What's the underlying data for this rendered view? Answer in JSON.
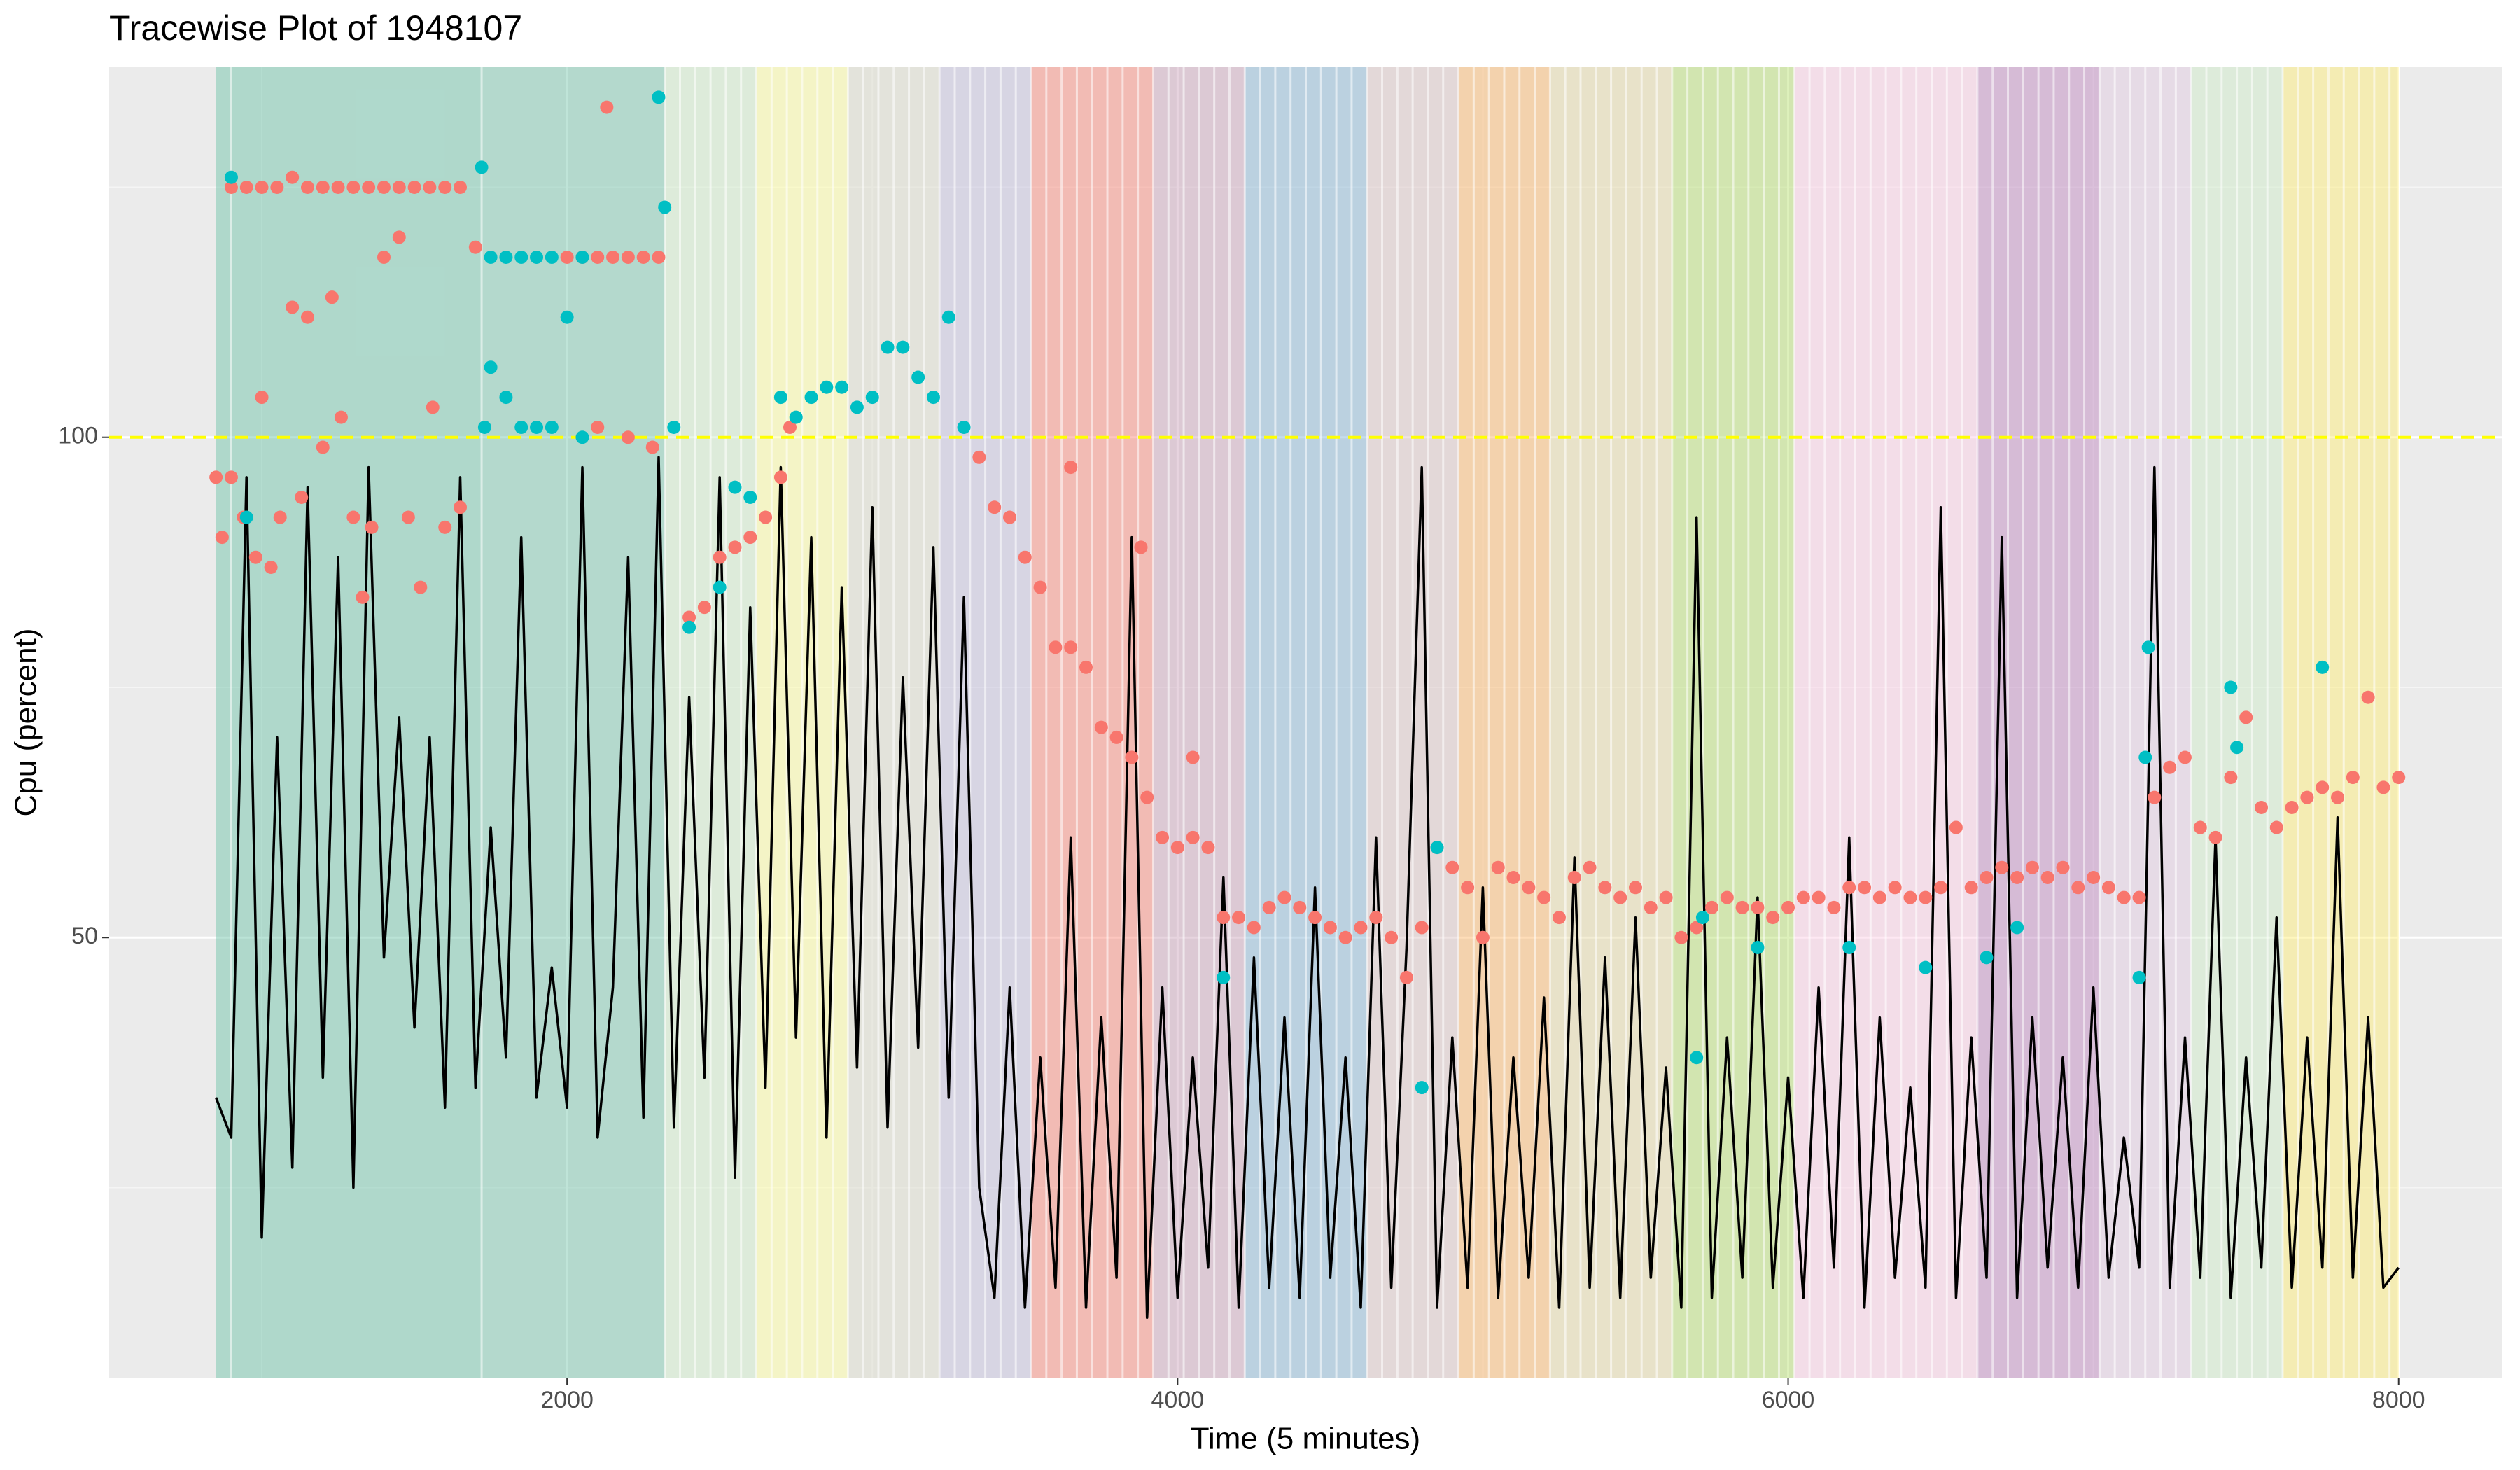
{
  "chart_data": {
    "type": "line",
    "title": "Tracewise Plot of 1948107",
    "x_label": "Time (5 minutes)",
    "y_label": "Cpu (percent)",
    "xlim": [
      500,
      8340
    ],
    "ylim": [
      6,
      137
    ],
    "xticks": [
      2000,
      4000,
      6000,
      8000
    ],
    "yticks": [
      50,
      100
    ],
    "xminor": [
      1000,
      3000,
      5000,
      7000
    ],
    "yminor": [
      25,
      75,
      125
    ],
    "grid": true,
    "reference_line": {
      "value": 100,
      "color": "#ffff00"
    },
    "bands": [
      {
        "x0": 850,
        "x1": 1720,
        "color": "#66c2a5"
      },
      {
        "x0": 1720,
        "x1": 2320,
        "color": "#70c4a8"
      },
      {
        "x0": 2320,
        "x1": 2620,
        "color": "#ccebc5"
      },
      {
        "x0": 2620,
        "x1": 2920,
        "color": "#ffff99"
      },
      {
        "x0": 2920,
        "x1": 3220,
        "color": "#d9d9c8"
      },
      {
        "x0": 3220,
        "x1": 3520,
        "color": "#bebada"
      },
      {
        "x0": 3520,
        "x1": 3920,
        "color": "#fb8072"
      },
      {
        "x0": 3920,
        "x1": 4220,
        "color": "#c9a0b8"
      },
      {
        "x0": 4220,
        "x1": 4620,
        "color": "#80b1d3"
      },
      {
        "x0": 4620,
        "x1": 4920,
        "color": "#d9c0c0"
      },
      {
        "x0": 4920,
        "x1": 5220,
        "color": "#fdb462"
      },
      {
        "x0": 5220,
        "x1": 5620,
        "color": "#e5d8a0"
      },
      {
        "x0": 5620,
        "x1": 6020,
        "color": "#b3de69"
      },
      {
        "x0": 6020,
        "x1": 6620,
        "color": "#fccde5"
      },
      {
        "x0": 6620,
        "x1": 7020,
        "color": "#bc80bd"
      },
      {
        "x0": 7020,
        "x1": 7320,
        "color": "#e0c8e0"
      },
      {
        "x0": 7320,
        "x1": 7620,
        "color": "#ccebc5"
      },
      {
        "x0": 7620,
        "x1": 8000,
        "color": "#ffed6f"
      }
    ],
    "band_edges": [
      900,
      1720,
      2320,
      2370,
      2420,
      2470,
      2520,
      2570,
      2620,
      2670,
      2720,
      2770,
      2820,
      2870,
      2920,
      2970,
      3020,
      3070,
      3120,
      3170,
      3220,
      3270,
      3320,
      3370,
      3420,
      3470,
      3520,
      3570,
      3620,
      3670,
      3720,
      3770,
      3820,
      3870,
      3920,
      3970,
      4020,
      4070,
      4120,
      4170,
      4220,
      4270,
      4320,
      4370,
      4420,
      4470,
      4520,
      4570,
      4620,
      4670,
      4720,
      4770,
      4820,
      4870,
      4920,
      4970,
      5020,
      5070,
      5120,
      5170,
      5220,
      5270,
      5320,
      5370,
      5420,
      5470,
      5520,
      5570,
      5620,
      5670,
      5720,
      5770,
      5820,
      5870,
      5920,
      5970,
      6020,
      6070,
      6120,
      6170,
      6220,
      6270,
      6320,
      6370,
      6420,
      6470,
      6520,
      6570,
      6620,
      6670,
      6720,
      6770,
      6820,
      6870,
      6920,
      6970,
      7020,
      7070,
      7120,
      7170,
      7220,
      7270,
      7320,
      7370,
      7420,
      7470,
      7520,
      7570,
      7620,
      7670,
      7720,
      7770,
      7820,
      7870,
      7920,
      7970
    ],
    "line_color": "#000000",
    "x": [
      850,
      900,
      950,
      1000,
      1050,
      1100,
      1150,
      1200,
      1250,
      1300,
      1350,
      1400,
      1450,
      1500,
      1550,
      1600,
      1650,
      1700,
      1750,
      1800,
      1850,
      1900,
      1950,
      2000,
      2050,
      2100,
      2150,
      2200,
      2250,
      2300,
      2350,
      2400,
      2450,
      2500,
      2550,
      2600,
      2650,
      2700,
      2750,
      2800,
      2850,
      2900,
      2950,
      3000,
      3050,
      3100,
      3150,
      3200,
      3250,
      3300,
      3350,
      3400,
      3450,
      3500,
      3550,
      3600,
      3650,
      3700,
      3750,
      3800,
      3850,
      3900,
      3950,
      4000,
      4050,
      4100,
      4150,
      4200,
      4250,
      4300,
      4350,
      4400,
      4450,
      4500,
      4550,
      4600,
      4650,
      4700,
      4750,
      4800,
      4850,
      4900,
      4950,
      5000,
      5050,
      5100,
      5150,
      5200,
      5250,
      5300,
      5350,
      5400,
      5450,
      5500,
      5550,
      5600,
      5650,
      5700,
      5750,
      5800,
      5850,
      5900,
      5950,
      6000,
      6050,
      6100,
      6150,
      6200,
      6250,
      6300,
      6350,
      6400,
      6450,
      6500,
      6550,
      6600,
      6650,
      6700,
      6750,
      6800,
      6850,
      6900,
      6950,
      7000,
      7050,
      7100,
      7150,
      7200,
      7250,
      7300,
      7350,
      7400,
      7450,
      7500,
      7550,
      7600,
      7650,
      7700,
      7750,
      7800,
      7850,
      7900,
      7950,
      8000
    ],
    "values": [
      34,
      30,
      96,
      20,
      70,
      27,
      95,
      36,
      88,
      25,
      97,
      48,
      72,
      41,
      70,
      33,
      96,
      35,
      61,
      38,
      90,
      34,
      47,
      33,
      97,
      30,
      45,
      88,
      32,
      98,
      31,
      74,
      36,
      96,
      26,
      83,
      35,
      97,
      40,
      90,
      30,
      85,
      37,
      93,
      31,
      76,
      39,
      89,
      34,
      84,
      25,
      14,
      45,
      13,
      38,
      15,
      60,
      13,
      42,
      16,
      90,
      12,
      45,
      14,
      38,
      17,
      56,
      13,
      48,
      15,
      42,
      14,
      55,
      16,
      38,
      13,
      60,
      15,
      49,
      97,
      13,
      40,
      15,
      55,
      14,
      38,
      16,
      44,
      13,
      58,
      15,
      48,
      14,
      52,
      16,
      37,
      13,
      92,
      14,
      40,
      16,
      54,
      15,
      36,
      14,
      45,
      17,
      60,
      13,
      42,
      16,
      35,
      15,
      93,
      14,
      40,
      16,
      90,
      14,
      42,
      17,
      38,
      15,
      45,
      16,
      30,
      17,
      97,
      15,
      40,
      16,
      60,
      14,
      38,
      17,
      52,
      15,
      40,
      17,
      62,
      16,
      42,
      15,
      17
    ],
    "points": [
      {
        "color": "#f8766d",
        "x": [
          850,
          870,
          900,
          940,
          980,
          1000,
          1030,
          1060,
          1100,
          1130,
          1150,
          1200,
          1230,
          1260,
          1300,
          1330,
          1360,
          1400,
          1450,
          1480,
          1520,
          1560,
          1600,
          1650,
          1700,
          900,
          950,
          1000,
          1050,
          1100,
          1150,
          1200,
          1250,
          1300,
          1350,
          1400,
          1450,
          1500,
          1550,
          1600,
          1650,
          2000,
          2050,
          2100,
          2150,
          2200,
          2250,
          2300,
          2130,
          2100,
          2200,
          2280,
          2400,
          2450,
          2500,
          2550,
          2600,
          2650,
          2700,
          2730,
          3350,
          3400,
          3450,
          3500,
          3550,
          3600,
          3650,
          3700,
          3750,
          3800,
          3850,
          3900,
          3950,
          4000,
          4050,
          4100,
          3650,
          3880,
          4050,
          4150,
          4200,
          4250,
          4300,
          4350,
          4400,
          4450,
          4500,
          4550,
          4600,
          4650,
          4700,
          4750,
          4800,
          4850,
          4900,
          4950,
          5000,
          5050,
          5100,
          5150,
          5200,
          5250,
          5300,
          5350,
          5400,
          5450,
          5500,
          5550,
          5600,
          5650,
          5700,
          5750,
          5800,
          5850,
          5900,
          5950,
          6000,
          6050,
          6100,
          6150,
          6200,
          6250,
          6300,
          6350,
          6400,
          6450,
          6500,
          6550,
          6600,
          6650,
          6700,
          6750,
          6800,
          6850,
          6900,
          6950,
          7000,
          7050,
          7100,
          7150,
          7200,
          7250,
          7300,
          7350,
          7400,
          7450,
          7500,
          7550,
          7600,
          7650,
          7700,
          7750,
          7800,
          7850,
          7900,
          7950,
          8000
        ],
        "values": [
          96,
          90,
          96,
          92,
          88,
          104,
          87,
          92,
          113,
          94,
          112,
          99,
          114,
          102,
          92,
          84,
          91,
          118,
          120,
          92,
          85,
          103,
          91,
          93,
          119,
          125,
          125,
          125,
          125,
          126,
          125,
          125,
          125,
          125,
          125,
          125,
          125,
          125,
          125,
          125,
          125,
          118,
          118,
          118,
          118,
          118,
          118,
          118,
          133,
          101,
          100,
          99,
          82,
          83,
          88,
          89,
          90,
          92,
          96,
          101,
          98,
          93,
          92,
          88,
          85,
          79,
          79,
          77,
          71,
          70,
          68,
          64,
          60,
          59,
          60,
          59,
          97,
          89,
          68,
          52,
          52,
          51,
          53,
          54,
          53,
          52,
          51,
          50,
          51,
          52,
          50,
          46,
          51,
          59,
          57,
          55,
          50,
          57,
          56,
          55,
          54,
          52,
          56,
          57,
          55,
          54,
          55,
          53,
          54,
          50,
          51,
          53,
          54,
          53,
          53,
          52,
          53,
          54,
          54,
          53,
          55,
          55,
          54,
          55,
          54,
          54,
          55,
          61,
          55,
          56,
          57,
          56,
          57,
          56,
          57,
          55,
          56,
          55,
          54,
          54,
          64,
          67,
          68,
          61,
          60,
          66,
          72,
          63,
          61,
          63,
          64,
          65,
          64,
          66,
          74,
          65,
          66
        ]
      },
      {
        "color": "#00bfc4",
        "x": [
          900,
          950,
          1720,
          1730,
          1750,
          1800,
          1850,
          1900,
          1950,
          2000,
          2050,
          1750,
          1800,
          1850,
          1900,
          1950,
          2050,
          2300,
          2320,
          2350,
          2400,
          2500,
          2550,
          2600,
          2700,
          2750,
          2800,
          2850,
          2900,
          2950,
          3000,
          3050,
          3100,
          3150,
          3200,
          3250,
          3300,
          4150,
          4800,
          4850,
          5700,
          5720,
          5900,
          6200,
          6450,
          6650,
          6750,
          7150,
          7170,
          7180,
          7450,
          7470,
          7750
        ],
        "values": [
          126,
          92,
          127,
          101,
          107,
          104,
          101,
          101,
          101,
          112,
          100,
          118,
          118,
          118,
          118,
          118,
          118,
          134,
          123,
          101,
          81,
          85,
          95,
          94,
          104,
          102,
          104,
          105,
          105,
          103,
          104,
          109,
          109,
          106,
          104,
          112,
          101,
          46,
          35,
          59,
          38,
          52,
          49,
          49,
          47,
          48,
          51,
          46,
          68,
          79,
          75,
          69,
          77
        ]
      }
    ]
  }
}
